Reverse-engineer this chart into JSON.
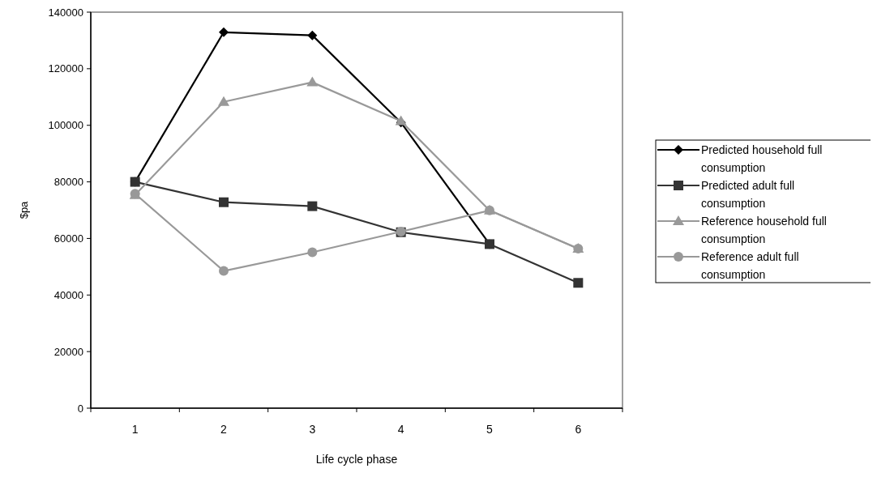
{
  "chart_data": {
    "type": "line",
    "xlabel": "Life cycle phase",
    "ylabel": "$pa",
    "categories": [
      "1",
      "2",
      "3",
      "4",
      "5",
      "6"
    ],
    "ylim": [
      0,
      140000
    ],
    "yticks": [
      0,
      20000,
      40000,
      60000,
      80000,
      100000,
      120000,
      140000
    ],
    "legend": "right",
    "grid": false,
    "series": [
      {
        "name": "Predicted household full consumption",
        "color": "#000000",
        "marker": "diamond",
        "values": [
          80000,
          132900,
          131800,
          101000,
          58000,
          null
        ]
      },
      {
        "name": "Predicted adult full consumption",
        "color": "#333333",
        "marker": "square",
        "values": [
          80000,
          72800,
          71400,
          62200,
          58000,
          44300
        ]
      },
      {
        "name": "Reference household full consumption",
        "color": "#999999",
        "marker": "triangle",
        "values": [
          75400,
          108300,
          115200,
          101500,
          69900,
          56400
        ]
      },
      {
        "name": "Reference adult full consumption",
        "color": "#999999",
        "marker": "circle",
        "values": [
          75800,
          48500,
          55100,
          62400,
          69900,
          56400
        ]
      }
    ]
  }
}
